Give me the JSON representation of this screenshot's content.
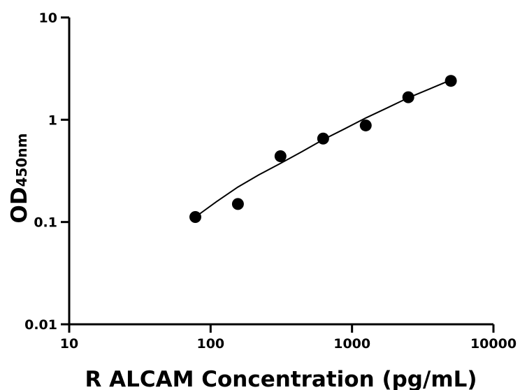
{
  "chart_data": {
    "type": "scatter",
    "title": "",
    "xlabel": "R ALCAM Concentration (pg/mL)",
    "ylabel_main": "OD",
    "ylabel_sub": "450nm",
    "x_scale": "log",
    "y_scale": "log",
    "xlim": [
      10,
      10000
    ],
    "ylim": [
      0.01,
      10
    ],
    "x_ticks": [
      {
        "value": 10,
        "label": "10"
      },
      {
        "value": 100,
        "label": "100"
      },
      {
        "value": 1000,
        "label": "1000"
      },
      {
        "value": 10000,
        "label": "10000"
      }
    ],
    "y_ticks": [
      {
        "value": 0.01,
        "label": "0.01"
      },
      {
        "value": 0.1,
        "label": "0.1"
      },
      {
        "value": 1,
        "label": "1"
      },
      {
        "value": 10,
        "label": "10"
      }
    ],
    "grid": false,
    "legend": "none",
    "point_color": "#000000",
    "series": [
      {
        "x": [
          78,
          156,
          312,
          625,
          1250,
          2500,
          5000
        ],
        "y": [
          0.112,
          0.15,
          0.44,
          0.655,
          0.88,
          1.66,
          2.4
        ]
      }
    ],
    "fit_curve": {
      "type": "line",
      "x": [
        78,
        110,
        156,
        220,
        312,
        440,
        625,
        880,
        1250,
        1760,
        2500,
        3530,
        5000
      ],
      "y": [
        0.112,
        0.158,
        0.22,
        0.29,
        0.375,
        0.485,
        0.64,
        0.81,
        1.04,
        1.3,
        1.64,
        2.0,
        2.45
      ]
    }
  }
}
